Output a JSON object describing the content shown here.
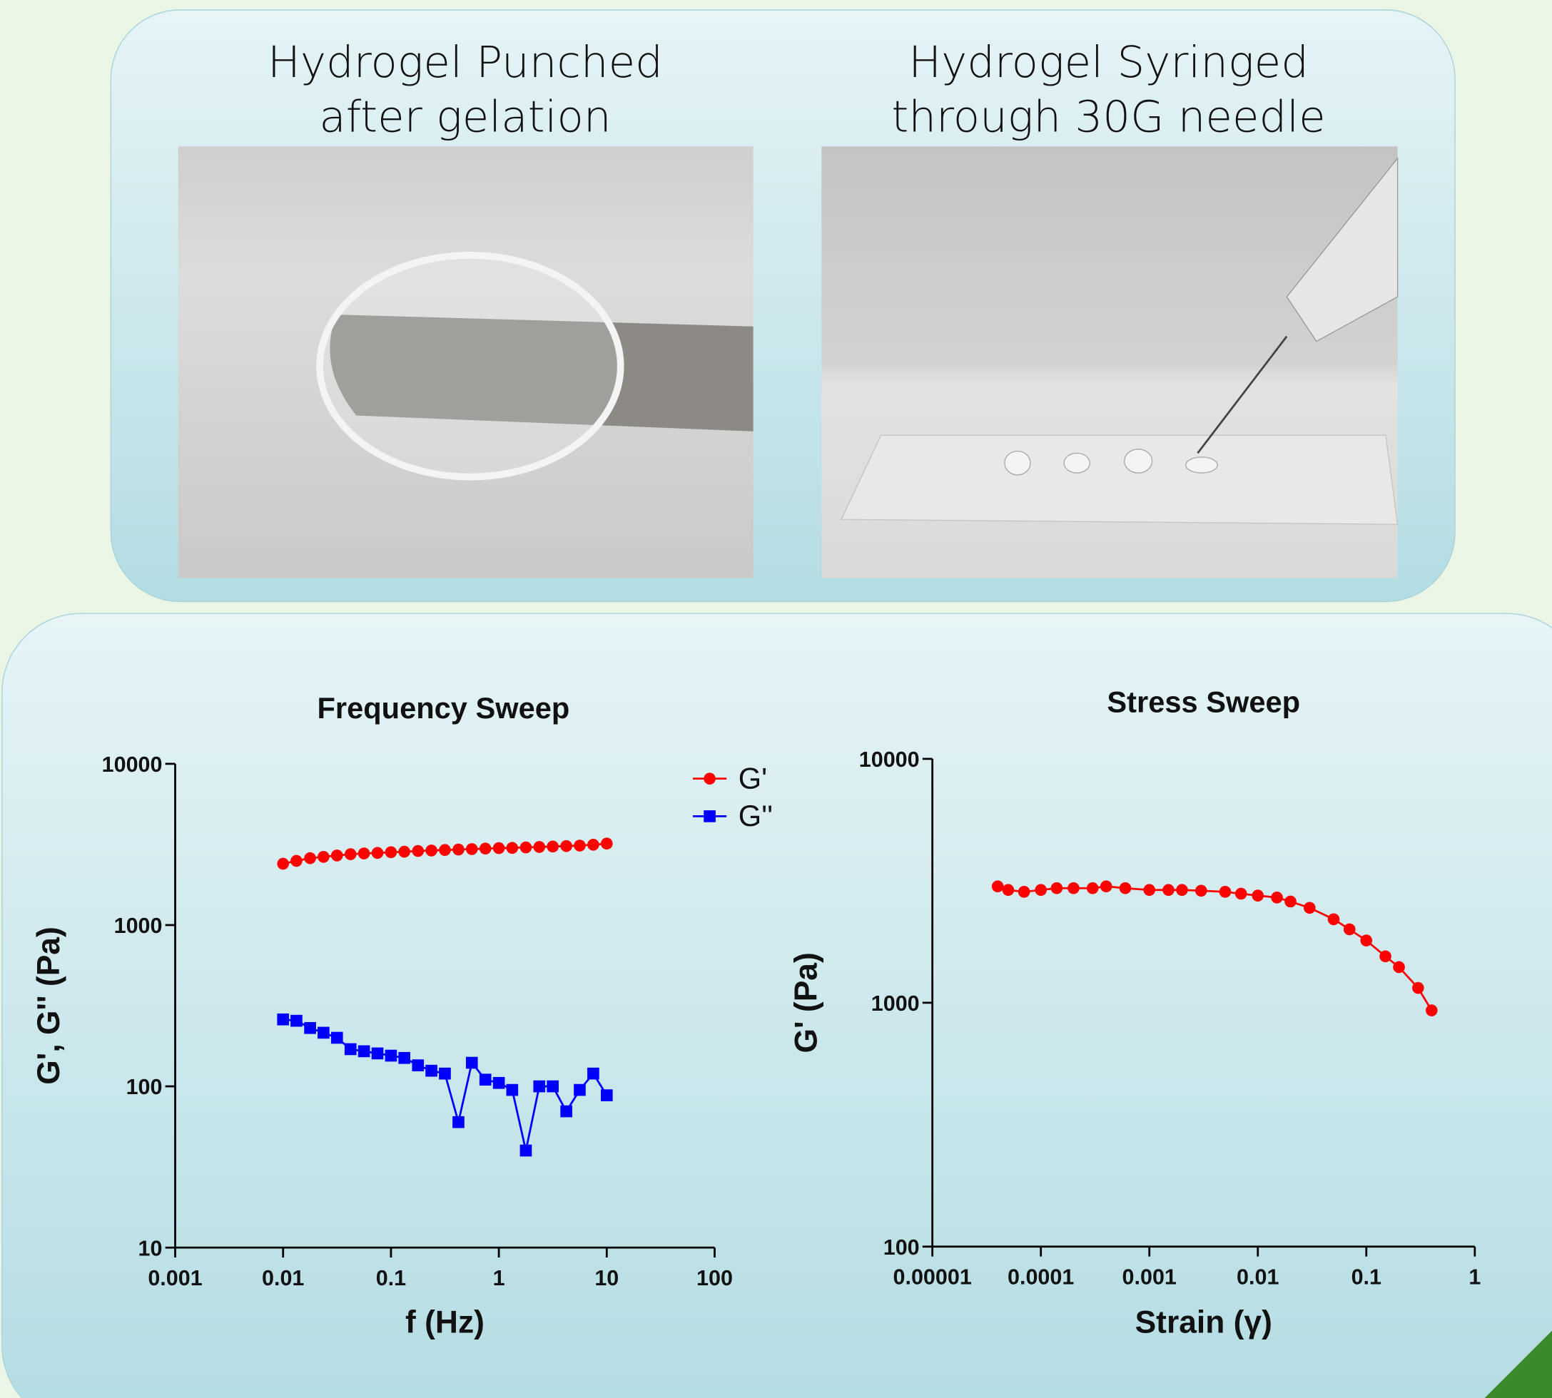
{
  "photos": [
    {
      "caption": [
        "Hydrogel Punched",
        "after gelation"
      ]
    },
    {
      "caption": [
        "Hydrogel Syringed",
        "through 30G needle"
      ]
    }
  ],
  "chart_data": [
    {
      "type": "line",
      "title": "Frequency Sweep",
      "x_label": "f (Hz)",
      "y_label": "G', G'' (Pa)",
      "x_log": true,
      "y_log": true,
      "legend": "upper right",
      "xlim": [
        0.001,
        100
      ],
      "xticks": [
        0.001,
        0.01,
        0.1,
        1,
        10,
        100
      ],
      "ylim": [
        10,
        10000
      ],
      "yticks": [
        10,
        100,
        1000,
        10000
      ],
      "x": [
        0.01,
        0.0133,
        0.0178,
        0.0237,
        0.0316,
        0.0422,
        0.0562,
        0.075,
        0.1,
        0.133,
        0.178,
        0.237,
        0.316,
        0.422,
        0.562,
        0.75,
        1,
        1.33,
        1.78,
        2.37,
        3.16,
        4.22,
        5.62,
        7.5,
        10
      ],
      "series": [
        {
          "name": "G'",
          "color": "#ff0000",
          "marker": "circle",
          "values": [
            2400,
            2500,
            2600,
            2650,
            2700,
            2750,
            2780,
            2800,
            2830,
            2850,
            2880,
            2900,
            2920,
            2940,
            2960,
            2980,
            3000,
            3010,
            3030,
            3050,
            3070,
            3090,
            3110,
            3150,
            3200
          ]
        },
        {
          "name": "G''",
          "color": "#0000ff",
          "marker": "square",
          "values": [
            260,
            255,
            230,
            215,
            200,
            170,
            165,
            160,
            155,
            150,
            135,
            125,
            120,
            60,
            140,
            110,
            105,
            95,
            40,
            100,
            100,
            70,
            95,
            120,
            88
          ]
        }
      ]
    },
    {
      "type": "line",
      "title": "Stress Sweep",
      "x_label": "Strain (γ)",
      "y_label": "G' (Pa)",
      "x_log": true,
      "y_log": true,
      "xlim": [
        1e-05,
        1
      ],
      "xticks": [
        1e-05,
        0.0001,
        0.001,
        0.01,
        0.1,
        1
      ],
      "ylim": [
        100,
        10000
      ],
      "yticks": [
        100,
        1000,
        10000
      ],
      "x": [
        4e-05,
        5e-05,
        7e-05,
        0.0001,
        0.00014,
        0.0002,
        0.0003,
        0.0004,
        0.0006,
        0.001,
        0.0015,
        0.002,
        0.003,
        0.005,
        0.007,
        0.01,
        0.015,
        0.02,
        0.03,
        0.05,
        0.07,
        0.1,
        0.15,
        0.2,
        0.3,
        0.4
      ],
      "series": [
        {
          "color": "#ff0000",
          "marker": "circle",
          "values": [
            3000,
            2900,
            2850,
            2900,
            2950,
            2950,
            2950,
            3000,
            2950,
            2900,
            2900,
            2900,
            2880,
            2850,
            2800,
            2750,
            2700,
            2600,
            2450,
            2200,
            2000,
            1800,
            1550,
            1400,
            1150,
            930
          ]
        }
      ]
    }
  ]
}
